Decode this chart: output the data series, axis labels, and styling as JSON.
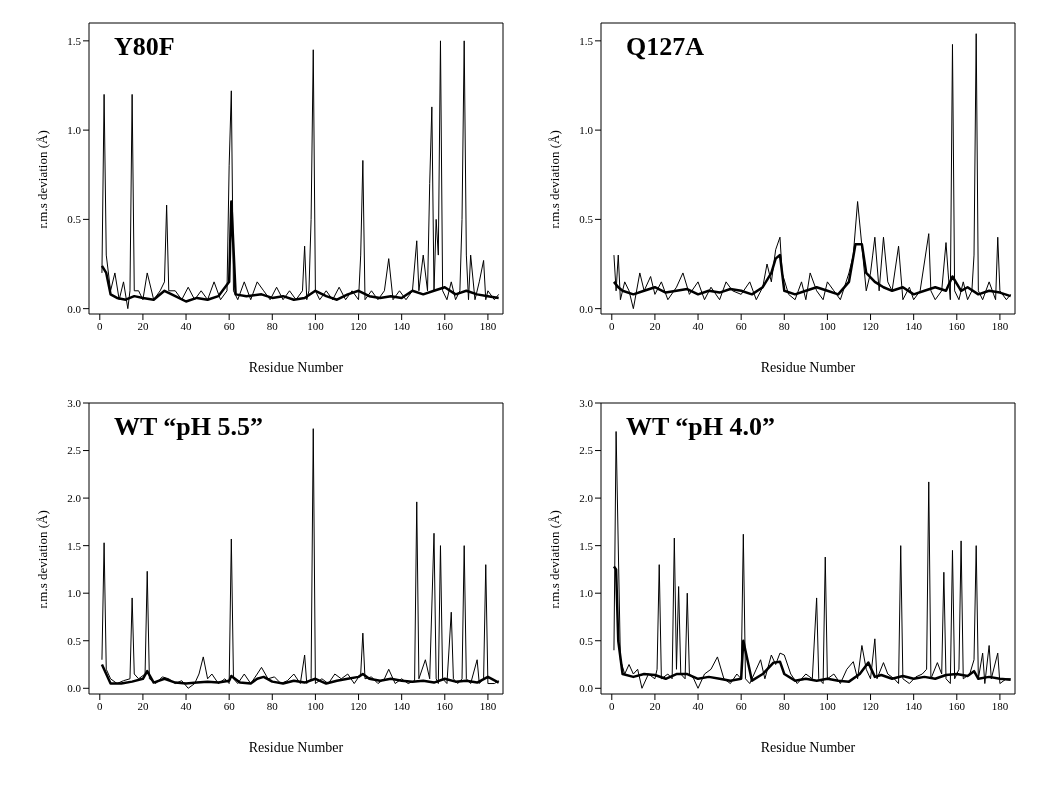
{
  "chart_data": [
    {
      "type": "line",
      "title": "Y80F",
      "xlabel": "Residue Number",
      "ylabel": "r.m.s deviation (Å)",
      "xlim": [
        -5,
        187
      ],
      "xticks": [
        0,
        20,
        40,
        60,
        80,
        100,
        120,
        140,
        160,
        180
      ],
      "ylim": [
        -0.03,
        1.6
      ],
      "yticks": [
        {
          "value": 0,
          "label": "0.0"
        },
        {
          "value": 0.5,
          "label": "0.5"
        },
        {
          "value": 1,
          "label": "1.0"
        },
        {
          "value": 1.5,
          "label": "1.5"
        }
      ],
      "marker": "none",
      "grid": false,
      "legend": false,
      "series": [
        {
          "color": "#000000",
          "x": [
            1,
            2,
            3,
            5,
            7,
            9,
            11,
            13,
            14,
            15,
            16,
            18,
            20,
            22,
            25,
            28,
            30,
            31,
            32,
            35,
            38,
            41,
            44,
            47,
            50,
            53,
            56,
            59,
            60,
            61,
            62,
            64,
            67,
            70,
            73,
            76,
            79,
            82,
            85,
            88,
            91,
            94,
            95,
            96,
            97,
            98,
            99,
            100,
            102,
            105,
            108,
            111,
            114,
            117,
            120,
            121,
            122,
            123,
            126,
            129,
            132,
            134,
            136,
            139,
            142,
            145,
            147,
            148,
            150,
            152,
            153,
            154,
            155,
            156,
            157,
            158,
            159,
            161,
            163,
            165,
            167,
            168,
            169,
            170,
            171,
            172,
            174,
            176,
            178,
            179,
            180,
            183,
            185
          ],
          "values": [
            0.2,
            1.2,
            0.3,
            0.1,
            0.2,
            0.05,
            0.15,
            0.0,
            0.1,
            1.2,
            0.1,
            0.1,
            0.05,
            0.2,
            0.05,
            0.1,
            0.15,
            0.58,
            0.1,
            0.1,
            0.05,
            0.12,
            0.05,
            0.1,
            0.05,
            0.15,
            0.05,
            0.1,
            0.8,
            1.22,
            0.1,
            0.05,
            0.15,
            0.05,
            0.15,
            0.1,
            0.05,
            0.12,
            0.05,
            0.1,
            0.05,
            0.1,
            0.35,
            0.05,
            0.1,
            0.5,
            1.45,
            0.1,
            0.05,
            0.1,
            0.05,
            0.12,
            0.05,
            0.1,
            0.05,
            0.3,
            0.83,
            0.05,
            0.1,
            0.05,
            0.1,
            0.28,
            0.05,
            0.1,
            0.05,
            0.1,
            0.38,
            0.1,
            0.3,
            0.1,
            0.7,
            1.13,
            0.1,
            0.5,
            0.3,
            1.5,
            0.1,
            0.05,
            0.15,
            0.05,
            0.1,
            0.5,
            1.5,
            0.3,
            0.05,
            0.3,
            0.05,
            0.15,
            0.27,
            0.05,
            0.1,
            0.05,
            0.08
          ]
        },
        {
          "color": "#000000",
          "x": [
            1,
            3,
            5,
            8,
            12,
            16,
            20,
            25,
            30,
            35,
            40,
            45,
            50,
            55,
            60,
            61,
            63,
            68,
            75,
            80,
            85,
            90,
            95,
            100,
            105,
            110,
            115,
            120,
            125,
            130,
            135,
            140,
            145,
            150,
            155,
            160,
            165,
            170,
            175,
            180,
            185
          ],
          "values": [
            0.24,
            0.2,
            0.08,
            0.06,
            0.05,
            0.07,
            0.06,
            0.05,
            0.1,
            0.07,
            0.04,
            0.06,
            0.05,
            0.07,
            0.15,
            0.6,
            0.08,
            0.07,
            0.08,
            0.06,
            0.07,
            0.05,
            0.06,
            0.1,
            0.07,
            0.05,
            0.08,
            0.1,
            0.07,
            0.06,
            0.07,
            0.06,
            0.1,
            0.08,
            0.1,
            0.12,
            0.08,
            0.1,
            0.08,
            0.07,
            0.06
          ]
        }
      ]
    },
    {
      "type": "line",
      "title": "Q127A",
      "xlabel": "Residue Number",
      "ylabel": "r.m.s deviation (Å)",
      "xlim": [
        -5,
        187
      ],
      "xticks": [
        0,
        20,
        40,
        60,
        80,
        100,
        120,
        140,
        160,
        180
      ],
      "ylim": [
        -0.03,
        1.6
      ],
      "yticks": [
        {
          "value": 0,
          "label": "0.0"
        },
        {
          "value": 0.5,
          "label": "0.5"
        },
        {
          "value": 1,
          "label": "1.0"
        },
        {
          "value": 1.5,
          "label": "1.5"
        }
      ],
      "marker": "none",
      "grid": false,
      "legend": false,
      "series": [
        {
          "color": "#000000",
          "x": [
            1,
            2,
            3,
            4,
            6,
            8,
            10,
            13,
            15,
            18,
            20,
            23,
            26,
            30,
            33,
            36,
            40,
            43,
            46,
            50,
            53,
            56,
            60,
            64,
            67,
            70,
            72,
            74,
            76,
            78,
            79,
            82,
            85,
            88,
            90,
            92,
            95,
            98,
            100,
            103,
            106,
            110,
            112,
            114,
            116,
            118,
            120,
            121,
            122,
            124,
            126,
            128,
            130,
            133,
            135,
            138,
            140,
            143,
            147,
            148,
            150,
            153,
            155,
            156,
            157,
            158,
            159,
            161,
            163,
            165,
            167,
            168,
            169,
            170,
            172,
            175,
            178,
            179,
            180,
            183,
            185
          ],
          "values": [
            0.3,
            0.1,
            0.3,
            0.05,
            0.15,
            0.1,
            0.0,
            0.2,
            0.1,
            0.18,
            0.08,
            0.15,
            0.05,
            0.12,
            0.2,
            0.08,
            0.15,
            0.05,
            0.12,
            0.05,
            0.15,
            0.1,
            0.08,
            0.15,
            0.05,
            0.12,
            0.25,
            0.15,
            0.33,
            0.4,
            0.2,
            0.08,
            0.05,
            0.15,
            0.05,
            0.2,
            0.1,
            0.05,
            0.15,
            0.1,
            0.05,
            0.2,
            0.3,
            0.6,
            0.35,
            0.1,
            0.2,
            0.3,
            0.4,
            0.1,
            0.4,
            0.15,
            0.1,
            0.35,
            0.05,
            0.12,
            0.05,
            0.1,
            0.42,
            0.1,
            0.05,
            0.1,
            0.37,
            0.2,
            0.05,
            1.48,
            0.1,
            0.05,
            0.15,
            0.05,
            0.1,
            0.3,
            1.54,
            0.1,
            0.05,
            0.15,
            0.05,
            0.4,
            0.1,
            0.05,
            0.08
          ]
        },
        {
          "color": "#000000",
          "x": [
            1,
            3,
            5,
            10,
            15,
            20,
            25,
            30,
            35,
            40,
            45,
            50,
            55,
            60,
            65,
            70,
            74,
            76,
            78,
            80,
            85,
            90,
            95,
            100,
            105,
            110,
            113,
            116,
            118,
            122,
            126,
            130,
            135,
            140,
            145,
            150,
            155,
            158,
            162,
            165,
            170,
            175,
            180,
            185
          ],
          "values": [
            0.15,
            0.12,
            0.1,
            0.08,
            0.1,
            0.12,
            0.09,
            0.1,
            0.11,
            0.08,
            0.1,
            0.09,
            0.11,
            0.1,
            0.08,
            0.12,
            0.2,
            0.28,
            0.3,
            0.1,
            0.08,
            0.1,
            0.12,
            0.1,
            0.08,
            0.15,
            0.36,
            0.36,
            0.2,
            0.15,
            0.12,
            0.1,
            0.12,
            0.08,
            0.1,
            0.12,
            0.1,
            0.18,
            0.1,
            0.12,
            0.08,
            0.1,
            0.09,
            0.07
          ]
        }
      ]
    },
    {
      "type": "line",
      "title": "WT “pH 5.5”",
      "xlabel": "Residue Number",
      "ylabel": "r.m.s deviation (Å)",
      "xlim": [
        -5,
        187
      ],
      "xticks": [
        0,
        20,
        40,
        60,
        80,
        100,
        120,
        140,
        160,
        180
      ],
      "ylim": [
        -0.06,
        3.0
      ],
      "yticks": [
        {
          "value": 0,
          "label": "0.0"
        },
        {
          "value": 0.5,
          "label": "0.5"
        },
        {
          "value": 1,
          "label": "1.0"
        },
        {
          "value": 1.5,
          "label": "1.5"
        },
        {
          "value": 2,
          "label": "2.0"
        },
        {
          "value": 2.5,
          "label": "2.5"
        },
        {
          "value": 3,
          "label": "3.0"
        }
      ],
      "marker": "none",
      "grid": false,
      "legend": false,
      "series": [
        {
          "color": "#000000",
          "x": [
            1,
            2,
            3,
            5,
            8,
            11,
            14,
            15,
            16,
            18,
            21,
            22,
            23,
            26,
            29,
            32,
            35,
            38,
            41,
            44,
            46,
            48,
            50,
            52,
            55,
            58,
            60,
            61,
            62,
            64,
            67,
            70,
            73,
            75,
            78,
            81,
            84,
            87,
            90,
            93,
            95,
            96,
            98,
            99,
            100,
            103,
            106,
            109,
            112,
            115,
            118,
            121,
            122,
            123,
            126,
            129,
            132,
            134,
            137,
            140,
            143,
            146,
            147,
            148,
            151,
            153,
            155,
            156,
            157,
            158,
            159,
            161,
            163,
            164,
            166,
            168,
            169,
            170,
            172,
            175,
            176,
            178,
            179,
            180,
            183,
            185
          ],
          "values": [
            0.3,
            1.53,
            0.2,
            0.1,
            0.05,
            0.08,
            0.1,
            0.95,
            0.15,
            0.1,
            0.15,
            1.23,
            0.1,
            0.05,
            0.12,
            0.1,
            0.05,
            0.08,
            0.0,
            0.05,
            0.15,
            0.33,
            0.1,
            0.15,
            0.05,
            0.1,
            0.05,
            1.57,
            0.1,
            0.05,
            0.15,
            0.05,
            0.15,
            0.22,
            0.1,
            0.12,
            0.05,
            0.08,
            0.15,
            0.05,
            0.35,
            0.05,
            0.1,
            2.73,
            0.05,
            0.1,
            0.05,
            0.15,
            0.1,
            0.15,
            0.05,
            0.15,
            0.58,
            0.1,
            0.12,
            0.05,
            0.1,
            0.2,
            0.05,
            0.1,
            0.05,
            0.08,
            1.96,
            0.1,
            0.3,
            0.1,
            1.63,
            0.1,
            0.05,
            1.5,
            0.1,
            0.05,
            0.8,
            0.1,
            0.05,
            0.1,
            1.5,
            0.1,
            0.05,
            0.3,
            0.05,
            0.1,
            1.3,
            0.05,
            0.05,
            0.08
          ]
        },
        {
          "color": "#000000",
          "x": [
            1,
            3,
            5,
            10,
            15,
            20,
            22,
            25,
            30,
            35,
            40,
            45,
            50,
            55,
            60,
            61,
            65,
            70,
            73,
            76,
            80,
            85,
            90,
            95,
            100,
            105,
            110,
            115,
            120,
            122,
            125,
            130,
            135,
            140,
            145,
            150,
            155,
            160,
            165,
            170,
            175,
            180,
            185
          ],
          "values": [
            0.25,
            0.15,
            0.05,
            0.05,
            0.07,
            0.1,
            0.18,
            0.06,
            0.1,
            0.06,
            0.05,
            0.06,
            0.07,
            0.06,
            0.08,
            0.13,
            0.06,
            0.05,
            0.1,
            0.12,
            0.07,
            0.05,
            0.08,
            0.06,
            0.1,
            0.05,
            0.08,
            0.1,
            0.12,
            0.15,
            0.1,
            0.08,
            0.1,
            0.08,
            0.07,
            0.08,
            0.06,
            0.1,
            0.07,
            0.08,
            0.06,
            0.12,
            0.06
          ]
        }
      ]
    },
    {
      "type": "line",
      "title": "WT “pH 4.0”",
      "xlabel": "Residue Number",
      "ylabel": "r.m.s deviation (Å)",
      "xlim": [
        -5,
        187
      ],
      "xticks": [
        0,
        20,
        40,
        60,
        80,
        100,
        120,
        140,
        160,
        180
      ],
      "ylim": [
        -0.06,
        3.0
      ],
      "yticks": [
        {
          "value": 0,
          "label": "0.0"
        },
        {
          "value": 0.5,
          "label": "0.5"
        },
        {
          "value": 1,
          "label": "1.0"
        },
        {
          "value": 1.5,
          "label": "1.5"
        },
        {
          "value": 2,
          "label": "2.0"
        },
        {
          "value": 2.5,
          "label": "2.5"
        },
        {
          "value": 3,
          "label": "3.0"
        }
      ],
      "marker": "none",
      "grid": false,
      "legend": false,
      "series": [
        {
          "color": "#000000",
          "x": [
            1,
            2,
            4,
            6,
            8,
            10,
            12,
            14,
            17,
            20,
            21,
            22,
            23,
            26,
            28,
            29,
            30,
            31,
            32,
            34,
            35,
            36,
            38,
            40,
            43,
            46,
            49,
            52,
            55,
            58,
            60,
            61,
            62,
            64,
            67,
            69,
            71,
            74,
            76,
            78,
            80,
            83,
            86,
            90,
            93,
            95,
            96,
            98,
            99,
            100,
            103,
            106,
            109,
            112,
            114,
            116,
            118,
            120,
            122,
            123,
            126,
            128,
            131,
            133,
            134,
            135,
            138,
            141,
            144,
            146,
            147,
            148,
            151,
            153,
            154,
            155,
            157,
            158,
            159,
            161,
            162,
            163,
            166,
            168,
            169,
            170,
            172,
            173,
            175,
            176,
            179,
            180,
            183,
            185
          ],
          "values": [
            0.4,
            2.7,
            0.3,
            0.15,
            0.25,
            0.15,
            0.2,
            0.0,
            0.15,
            0.1,
            0.2,
            1.3,
            0.1,
            0.15,
            0.1,
            1.58,
            0.2,
            1.07,
            0.15,
            0.1,
            1.0,
            0.15,
            0.1,
            0.0,
            0.15,
            0.2,
            0.33,
            0.1,
            0.05,
            0.15,
            0.1,
            1.62,
            0.1,
            0.05,
            0.2,
            0.3,
            0.1,
            0.35,
            0.25,
            0.37,
            0.35,
            0.15,
            0.05,
            0.15,
            0.1,
            0.95,
            0.1,
            0.05,
            1.38,
            0.1,
            0.15,
            0.05,
            0.2,
            0.28,
            0.1,
            0.45,
            0.2,
            0.1,
            0.52,
            0.1,
            0.27,
            0.15,
            0.1,
            0.05,
            1.5,
            0.1,
            0.05,
            0.12,
            0.15,
            0.2,
            2.17,
            0.1,
            0.27,
            0.15,
            1.22,
            0.1,
            0.05,
            1.45,
            0.1,
            0.2,
            1.55,
            0.1,
            0.15,
            0.3,
            1.5,
            0.1,
            0.37,
            0.05,
            0.45,
            0.1,
            0.37,
            0.05,
            0.1,
            0.1
          ]
        },
        {
          "color": "#000000",
          "x": [
            1,
            2,
            3,
            5,
            10,
            15,
            20,
            25,
            30,
            35,
            40,
            45,
            50,
            55,
            60,
            61,
            65,
            70,
            75,
            78,
            80,
            85,
            90,
            95,
            100,
            105,
            110,
            115,
            119,
            122,
            125,
            130,
            135,
            140,
            145,
            150,
            155,
            160,
            165,
            168,
            170,
            175,
            180,
            185
          ],
          "values": [
            1.28,
            1.25,
            0.5,
            0.15,
            0.12,
            0.15,
            0.14,
            0.1,
            0.15,
            0.15,
            0.1,
            0.12,
            0.1,
            0.08,
            0.1,
            0.5,
            0.08,
            0.15,
            0.27,
            0.28,
            0.15,
            0.08,
            0.1,
            0.08,
            0.1,
            0.08,
            0.07,
            0.15,
            0.27,
            0.12,
            0.14,
            0.1,
            0.13,
            0.1,
            0.12,
            0.1,
            0.14,
            0.15,
            0.13,
            0.18,
            0.1,
            0.12,
            0.1,
            0.09
          ]
        }
      ]
    }
  ]
}
